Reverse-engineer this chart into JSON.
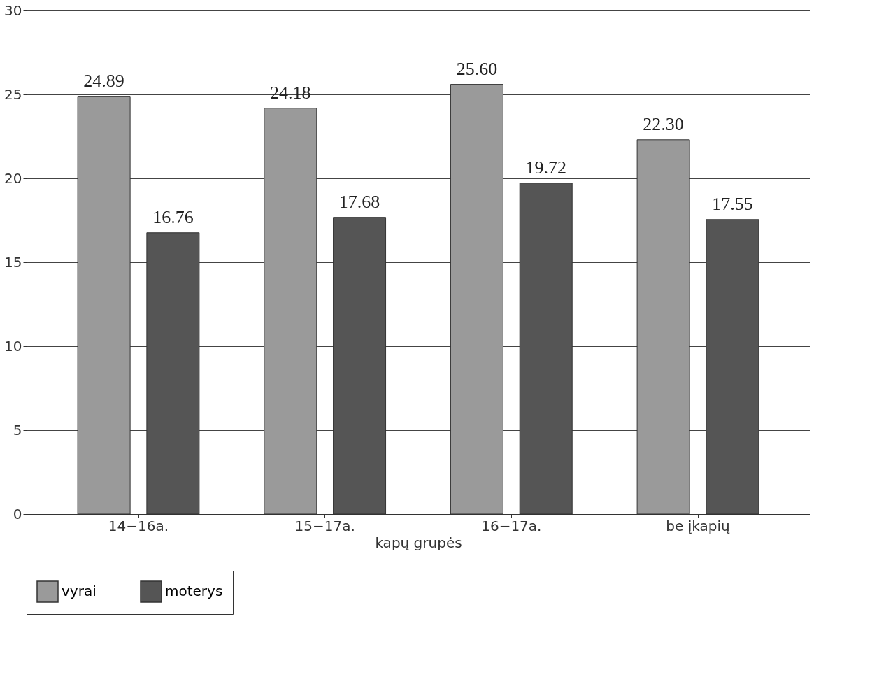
{
  "chart_data": {
    "type": "bar",
    "xlabel": "kapų grupės",
    "categories": [
      "14−16a.",
      "15−17a.",
      "16−17a.",
      "be įkapių"
    ],
    "series": [
      {
        "name": "vyrai",
        "color": "#9a9a9a",
        "values": [
          24.89,
          24.18,
          25.6,
          22.3
        ],
        "value_labels": [
          "24.89",
          "24.18",
          "25.60",
          "22.30"
        ]
      },
      {
        "name": "moterys",
        "color": "#555555",
        "values": [
          16.76,
          17.68,
          19.72,
          17.55
        ],
        "value_labels": [
          "16.76",
          "17.68",
          "19.72",
          "17.55"
        ]
      }
    ],
    "ylim": [
      0,
      30
    ],
    "yticks": [
      0,
      5,
      10,
      15,
      20,
      25,
      30
    ],
    "grid": "y",
    "legend": "bottom"
  }
}
